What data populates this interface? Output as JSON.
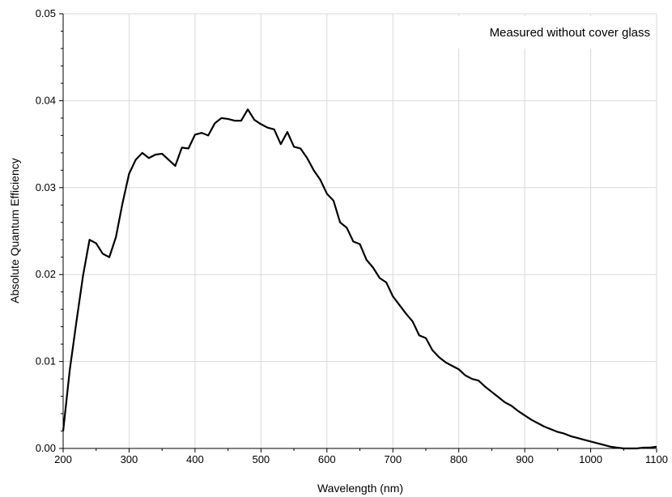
{
  "chart_data": {
    "type": "line",
    "title": "",
    "annotation": "Measured without cover glass",
    "xlabel": "Wavelength (nm)",
    "ylabel": "Absolute Quantum Efficiency",
    "xlim": [
      200,
      1100
    ],
    "ylim": [
      0,
      0.05
    ],
    "x_ticks": [
      "200",
      "300",
      "400",
      "500",
      "600",
      "700",
      "800",
      "900",
      "1000",
      "1100"
    ],
    "y_ticks": [
      "0.00",
      "0.01",
      "0.02",
      "0.03",
      "0.04",
      "0.05"
    ],
    "grid": true,
    "line_color": "#000000",
    "series": [
      {
        "x": [
          200,
          210,
          220,
          230,
          240,
          250,
          260,
          270,
          280,
          290,
          300,
          310,
          320,
          330,
          340,
          350,
          360,
          370,
          380,
          390,
          400,
          410,
          420,
          430,
          440,
          450,
          460,
          470,
          480,
          490,
          500,
          510,
          520,
          530,
          540,
          550,
          560,
          570,
          580,
          590,
          600,
          610,
          620,
          630,
          640,
          650,
          660,
          670,
          680,
          690,
          700,
          710,
          720,
          730,
          740,
          750,
          760,
          770,
          780,
          790,
          800,
          810,
          820,
          830,
          840,
          850,
          860,
          870,
          880,
          890,
          900,
          910,
          920,
          930,
          940,
          950,
          960,
          970,
          980,
          990,
          1000,
          1010,
          1020,
          1030,
          1040,
          1050,
          1060,
          1070,
          1080,
          1090,
          1100
        ],
        "y": [
          0.002,
          0.009,
          0.0145,
          0.0198,
          0.024,
          0.0236,
          0.0224,
          0.022,
          0.0243,
          0.0282,
          0.0316,
          0.0332,
          0.034,
          0.0334,
          0.0338,
          0.0339,
          0.0332,
          0.0325,
          0.0346,
          0.0345,
          0.0361,
          0.0363,
          0.036,
          0.0374,
          0.038,
          0.0379,
          0.0377,
          0.0377,
          0.039,
          0.0378,
          0.0373,
          0.0369,
          0.0367,
          0.035,
          0.0364,
          0.0347,
          0.0345,
          0.0334,
          0.032,
          0.0309,
          0.0293,
          0.0285,
          0.026,
          0.0254,
          0.0238,
          0.0235,
          0.0217,
          0.0208,
          0.0196,
          0.0191,
          0.0175,
          0.0165,
          0.0155,
          0.0146,
          0.013,
          0.0127,
          0.0113,
          0.0105,
          0.0099,
          0.0095,
          0.0091,
          0.0084,
          0.008,
          0.0078,
          0.0071,
          0.0065,
          0.0059,
          0.0053,
          0.0049,
          0.0043,
          0.0038,
          0.0033,
          0.0029,
          0.0025,
          0.0022,
          0.0019,
          0.0017,
          0.0014,
          0.0012,
          0.001,
          0.0008,
          0.0006,
          0.0004,
          0.0002,
          0.0001,
          0,
          0,
          0,
          0.0001,
          0.0001,
          0.0002
        ]
      }
    ]
  }
}
